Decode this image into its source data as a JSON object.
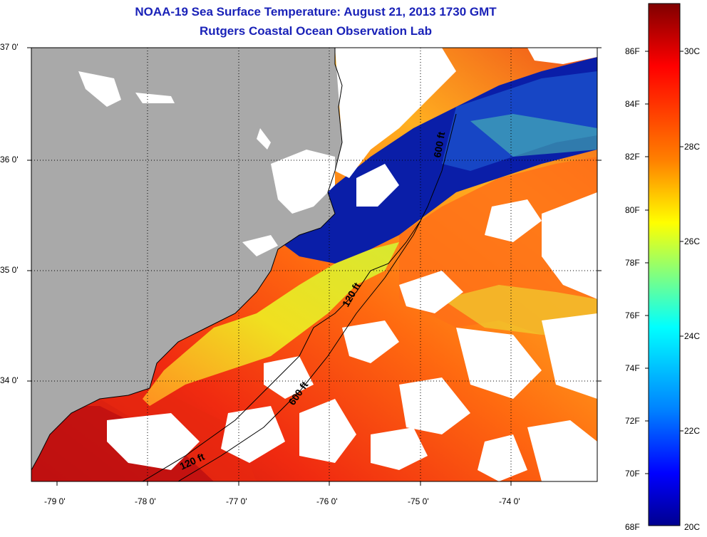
{
  "title": {
    "line1": "NOAA-19 Sea Surface Temperature:  August 21, 2013 1730 GMT",
    "line2": "Rutgers Coastal Ocean Observation Lab"
  },
  "map": {
    "lat_labels": [
      "37 0'",
      "36 0'",
      "35 0'",
      "34 0'"
    ],
    "lon_labels": [
      "-79 0'",
      "-78 0'",
      "-77 0'",
      "-76 0'",
      "-75 0'",
      "-74 0'"
    ],
    "contour_labels": [
      "600 ft",
      "120 ft",
      "600 ft",
      "120 ft"
    ],
    "colors": {
      "land": "#a9a9a9",
      "cloud": "#ffffff",
      "cold": "#0018a0",
      "warm": "#f03010",
      "hot": "#b00808",
      "coastal": "#e6e020"
    }
  },
  "colorbar": {
    "f_labels": [
      "86F",
      "84F",
      "82F",
      "80F",
      "78F",
      "76F",
      "74F",
      "72F",
      "70F",
      "68F"
    ],
    "c_labels": [
      "30C",
      "28C",
      "26C",
      "24C",
      "22C",
      "20C"
    ],
    "gradient_colors": [
      "#800000",
      "#ff0000",
      "#ff8000",
      "#ffff00",
      "#80ff80",
      "#00ffff",
      "#0080ff",
      "#0000ff",
      "#00008f"
    ]
  }
}
